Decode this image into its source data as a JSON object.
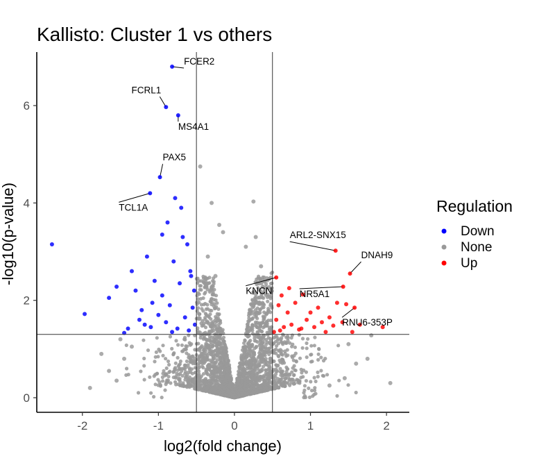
{
  "chart_data": {
    "type": "scatter",
    "title": "Kallisto: Cluster 1 vs others",
    "xlabel": "log2(fold change)",
    "ylabel": "-log10(p-value)",
    "xlim": [
      -2.6,
      2.3
    ],
    "ylim": [
      -0.3,
      7.1
    ],
    "x_ticks": [
      -2,
      -1,
      0,
      1,
      2
    ],
    "y_ticks": [
      0,
      2,
      4,
      6
    ],
    "thresholds": {
      "log2fc": [
        -0.5,
        0.5
      ],
      "neg_log10_p": 1.3
    },
    "legend": {
      "title": "Regulation",
      "position": "right",
      "entries": [
        {
          "label": "Down",
          "color": "#0000ff"
        },
        {
          "label": "None",
          "color": "#999999"
        },
        {
          "label": "Up",
          "color": "#ff0000"
        }
      ]
    },
    "labeled_points": [
      {
        "gene": "FCER2",
        "x": -0.82,
        "y": 6.8,
        "regulation": "Down"
      },
      {
        "gene": "FCRL1",
        "x": -0.9,
        "y": 5.97,
        "regulation": "Down"
      },
      {
        "gene": "MS4A1",
        "x": -0.74,
        "y": 5.8,
        "regulation": "Down"
      },
      {
        "gene": "PAX5",
        "x": -0.98,
        "y": 4.53,
        "regulation": "Down"
      },
      {
        "gene": "TCL1A",
        "x": -1.11,
        "y": 4.2,
        "regulation": "Down"
      },
      {
        "gene": "ARL2-SNX15",
        "x": 1.33,
        "y": 3.02,
        "regulation": "Up"
      },
      {
        "gene": "DNAH9",
        "x": 1.52,
        "y": 2.55,
        "regulation": "Up"
      },
      {
        "gene": "KNCN",
        "x": 0.55,
        "y": 2.47,
        "regulation": "Up"
      },
      {
        "gene": "NR5A1",
        "x": 1.43,
        "y": 2.28,
        "regulation": "Up"
      },
      {
        "gene": "RNU6-353P",
        "x": 1.58,
        "y": 1.85,
        "regulation": "Up"
      }
    ],
    "points": [
      {
        "x": -2.4,
        "y": 3.15,
        "regulation": "Down"
      },
      {
        "x": -1.97,
        "y": 1.72,
        "regulation": "Down"
      },
      {
        "x": -1.65,
        "y": 2.05,
        "regulation": "Down"
      },
      {
        "x": -1.55,
        "y": 2.28,
        "regulation": "Down"
      },
      {
        "x": -1.45,
        "y": 1.33,
        "regulation": "Down"
      },
      {
        "x": -1.35,
        "y": 2.6,
        "regulation": "Down"
      },
      {
        "x": -1.3,
        "y": 2.2,
        "regulation": "Down"
      },
      {
        "x": -1.22,
        "y": 1.8,
        "regulation": "Down"
      },
      {
        "x": -1.15,
        "y": 2.9,
        "regulation": "Down"
      },
      {
        "x": -1.1,
        "y": 1.45,
        "regulation": "Down"
      },
      {
        "x": -1.05,
        "y": 2.4,
        "regulation": "Down"
      },
      {
        "x": -0.95,
        "y": 3.35,
        "regulation": "Down"
      },
      {
        "x": -0.88,
        "y": 3.6,
        "regulation": "Down"
      },
      {
        "x": -0.8,
        "y": 2.8,
        "regulation": "Down"
      },
      {
        "x": -0.78,
        "y": 4.1,
        "regulation": "Down"
      },
      {
        "x": -0.7,
        "y": 3.9,
        "regulation": "Down"
      },
      {
        "x": -0.68,
        "y": 3.3,
        "regulation": "Down"
      },
      {
        "x": -0.62,
        "y": 3.15,
        "regulation": "Down"
      },
      {
        "x": -0.58,
        "y": 2.6,
        "regulation": "Down"
      },
      {
        "x": -0.53,
        "y": 2.2,
        "regulation": "Down"
      },
      {
        "x": -1.25,
        "y": 1.6,
        "regulation": "Down"
      },
      {
        "x": -1.18,
        "y": 1.5,
        "regulation": "Down"
      },
      {
        "x": -1.0,
        "y": 1.7,
        "regulation": "Down"
      },
      {
        "x": -0.95,
        "y": 2.1,
        "regulation": "Down"
      },
      {
        "x": -0.9,
        "y": 1.55,
        "regulation": "Down"
      },
      {
        "x": -0.85,
        "y": 1.9,
        "regulation": "Down"
      },
      {
        "x": -0.75,
        "y": 1.42,
        "regulation": "Down"
      },
      {
        "x": -0.72,
        "y": 2.35,
        "regulation": "Down"
      },
      {
        "x": -0.65,
        "y": 1.65,
        "regulation": "Down"
      },
      {
        "x": -0.6,
        "y": 1.38,
        "regulation": "Down"
      },
      {
        "x": -0.55,
        "y": 1.85,
        "regulation": "Down"
      },
      {
        "x": -0.52,
        "y": 1.5,
        "regulation": "Down"
      },
      {
        "x": -1.4,
        "y": 1.42,
        "regulation": "Down"
      },
      {
        "x": -1.08,
        "y": 1.95,
        "regulation": "Down"
      },
      {
        "x": -0.82,
        "y": 1.35,
        "regulation": "Down"
      },
      {
        "x": -0.57,
        "y": 2.5,
        "regulation": "Down"
      },
      {
        "x": 0.52,
        "y": 1.35,
        "regulation": "Up"
      },
      {
        "x": 0.55,
        "y": 1.6,
        "regulation": "Up"
      },
      {
        "x": 0.58,
        "y": 1.9,
        "regulation": "Up"
      },
      {
        "x": 0.62,
        "y": 2.1,
        "regulation": "Up"
      },
      {
        "x": 0.65,
        "y": 1.45,
        "regulation": "Up"
      },
      {
        "x": 0.7,
        "y": 1.75,
        "regulation": "Up"
      },
      {
        "x": 0.75,
        "y": 1.5,
        "regulation": "Up"
      },
      {
        "x": 0.8,
        "y": 1.95,
        "regulation": "Up"
      },
      {
        "x": 0.85,
        "y": 1.4,
        "regulation": "Up"
      },
      {
        "x": 0.9,
        "y": 2.12,
        "regulation": "Up"
      },
      {
        "x": 0.95,
        "y": 1.6,
        "regulation": "Up"
      },
      {
        "x": 1.0,
        "y": 1.75,
        "regulation": "Up"
      },
      {
        "x": 1.05,
        "y": 1.45,
        "regulation": "Up"
      },
      {
        "x": 1.1,
        "y": 1.85,
        "regulation": "Up"
      },
      {
        "x": 1.15,
        "y": 1.55,
        "regulation": "Up"
      },
      {
        "x": 1.2,
        "y": 1.35,
        "regulation": "Up"
      },
      {
        "x": 1.25,
        "y": 1.65,
        "regulation": "Up"
      },
      {
        "x": 1.3,
        "y": 1.48,
        "regulation": "Up"
      },
      {
        "x": 1.35,
        "y": 1.95,
        "regulation": "Up"
      },
      {
        "x": 1.42,
        "y": 1.55,
        "regulation": "Up"
      },
      {
        "x": 1.47,
        "y": 1.92,
        "regulation": "Up"
      },
      {
        "x": 1.55,
        "y": 1.35,
        "regulation": "Up"
      },
      {
        "x": 1.65,
        "y": 1.5,
        "regulation": "Up"
      },
      {
        "x": 1.95,
        "y": 1.45,
        "regulation": "Up"
      },
      {
        "x": 0.6,
        "y": 1.38,
        "regulation": "Up"
      },
      {
        "x": 0.72,
        "y": 2.25,
        "regulation": "Up"
      },
      {
        "x": 0.88,
        "y": 1.42,
        "regulation": "Up"
      },
      {
        "x": -0.45,
        "y": 4.75,
        "regulation": "None"
      },
      {
        "x": -0.3,
        "y": 4.0,
        "regulation": "None"
      },
      {
        "x": 0.25,
        "y": 4.03,
        "regulation": "None"
      },
      {
        "x": 0.28,
        "y": 3.3,
        "regulation": "None"
      },
      {
        "x": -0.2,
        "y": 3.55,
        "regulation": "None"
      },
      {
        "x": -0.15,
        "y": 3.4,
        "regulation": "None"
      },
      {
        "x": 0.15,
        "y": 3.1,
        "regulation": "None"
      },
      {
        "x": -0.35,
        "y": 2.9,
        "regulation": "None"
      },
      {
        "x": 0.35,
        "y": 2.7,
        "regulation": "None"
      },
      {
        "x": 0.4,
        "y": 2.4,
        "regulation": "None"
      },
      {
        "x": -0.25,
        "y": 2.5,
        "regulation": "None"
      },
      {
        "x": 2.05,
        "y": 0.3,
        "regulation": "None"
      },
      {
        "x": 1.8,
        "y": 1.28,
        "regulation": "None"
      },
      {
        "x": 1.75,
        "y": 0.8,
        "regulation": "None"
      },
      {
        "x": 1.6,
        "y": 0.7,
        "regulation": "None"
      },
      {
        "x": 1.5,
        "y": 1.1,
        "regulation": "None"
      },
      {
        "x": -1.9,
        "y": 0.2,
        "regulation": "None"
      },
      {
        "x": -1.75,
        "y": 0.9,
        "regulation": "None"
      },
      {
        "x": -1.65,
        "y": 0.55,
        "regulation": "None"
      },
      {
        "x": -1.55,
        "y": 0.35,
        "regulation": "None"
      },
      {
        "x": -1.5,
        "y": 1.2,
        "regulation": "None"
      },
      {
        "x": -1.45,
        "y": 0.8,
        "regulation": "None"
      },
      {
        "x": -1.35,
        "y": 1.05,
        "regulation": "None"
      },
      {
        "x": 1.45,
        "y": 0.4,
        "regulation": "None"
      },
      {
        "x": 1.25,
        "y": 0.25,
        "regulation": "None"
      }
    ]
  }
}
